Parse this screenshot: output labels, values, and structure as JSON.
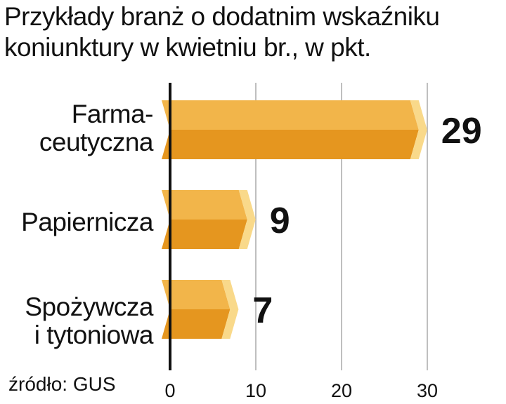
{
  "chart_data": {
    "type": "bar",
    "orientation": "horizontal",
    "title_lines": [
      "Przykłady branż o dodatnim wskaźniku",
      "koniunktury w kwietniu br., w pkt."
    ],
    "categories": [
      [
        "Farma-",
        "ceutyczna"
      ],
      [
        "Papiernicza"
      ],
      [
        "Spożywcza",
        "i tytoniowa"
      ]
    ],
    "values": [
      29,
      9,
      7
    ],
    "value_labels": [
      "29",
      "9",
      "7"
    ],
    "x_ticks": [
      "0",
      "10",
      "20",
      "30"
    ],
    "xlim": [
      0,
      30
    ],
    "grid": true,
    "source": "źródło: GUS",
    "colors": {
      "bar_top": "#F2B54A",
      "bar_bottom": "#E5961F",
      "bar_cap": "#F9D98A",
      "grid": "#AAAAAA",
      "axis": "#111111"
    }
  }
}
